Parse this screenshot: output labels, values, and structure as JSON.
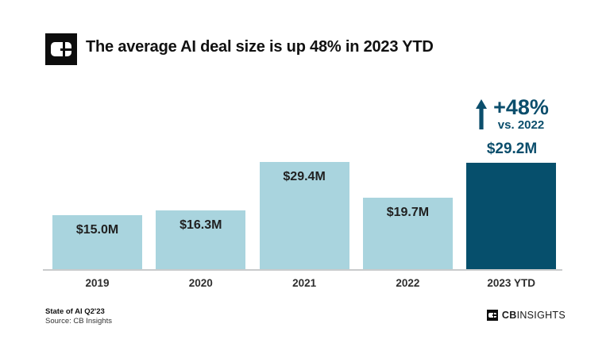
{
  "title": "The average AI deal size is up 48% in 2023 YTD",
  "annotation": {
    "pct": "+48%",
    "vs": "vs. 2022"
  },
  "chart_data": {
    "type": "bar",
    "categories": [
      "2019",
      "2020",
      "2021",
      "2022",
      "2023 YTD"
    ],
    "values": [
      15.0,
      16.3,
      29.4,
      19.7,
      29.2
    ],
    "value_labels": [
      "$15.0M",
      "$16.3M",
      "$29.4M",
      "$19.7M",
      "$29.2M"
    ],
    "unit": "$M",
    "title": "The average AI deal size is up 48% in 2023 YTD",
    "xlabel": "",
    "ylabel": "",
    "ylim": [
      0,
      30
    ],
    "grid": false,
    "legend": "none",
    "emphasis_index": 4,
    "annotation": "+48% vs. 2022",
    "colors": {
      "bar_light": "#a9d4de",
      "bar_dark": "#064f6c",
      "annotation_text": "#0b4e6c",
      "bar_label_text": "#212121",
      "axis": "#c9cbcc"
    }
  },
  "footer": {
    "report": "State of AI Q2'23",
    "source": "Source: CB Insights",
    "brand_cb": "CB",
    "brand_insights": "INSIGHTS"
  }
}
